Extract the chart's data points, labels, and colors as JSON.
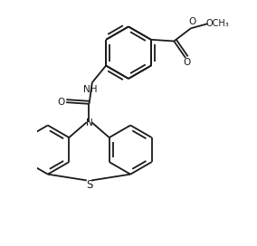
{
  "bg_color": "#ffffff",
  "line_color": "#1a1a1a",
  "line_width": 1.3,
  "font_size": 7.5,
  "figsize": [
    2.84,
    2.72
  ],
  "dpi": 100,
  "xlim": [
    -0.5,
    5.5
  ],
  "ylim": [
    -4.5,
    3.5
  ]
}
